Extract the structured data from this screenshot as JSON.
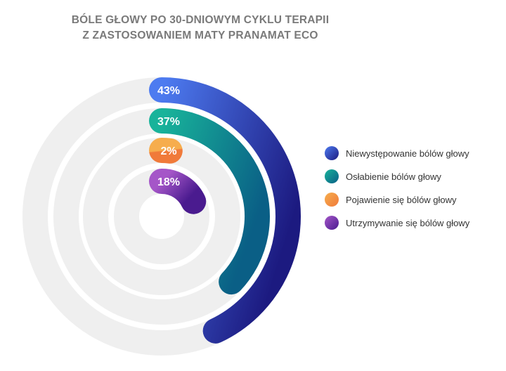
{
  "title": {
    "line1": "BÓLE GŁOWY PO 30-DNIOWYM CYKLU TERAPII",
    "line2": "Z ZASTOSOWANIEM MATY PRANAMAT ECO"
  },
  "chart_data": {
    "type": "radial-bar",
    "title": "BÓLE GŁOWY PO 30-DNIOWYM CYKLU TERAPII Z ZASTOSOWANIEM MATY PRANAMAT ECO",
    "unit": "%",
    "legend_position": "right",
    "series": [
      {
        "name": "Niewystępowanie bólów głowy",
        "value": 43,
        "label": "43%",
        "color_start": "#4d7bf0",
        "color_end": "#1c1a80"
      },
      {
        "name": "Osłabienie bólów głowy",
        "value": 37,
        "label": "37%",
        "color_start": "#18b39a",
        "color_end": "#0a5f86"
      },
      {
        "name": "Pojawienie się bólów głowy",
        "value": 2,
        "label": "2%",
        "color_start": "#f6ad4d",
        "color_end": "#f07a3a"
      },
      {
        "name": "Utrzymywanie się bólów głowy",
        "value": 18,
        "label": "18%",
        "color_start": "#a556c8",
        "color_end": "#4a1b8f"
      }
    ],
    "track_color": "#efefef"
  }
}
